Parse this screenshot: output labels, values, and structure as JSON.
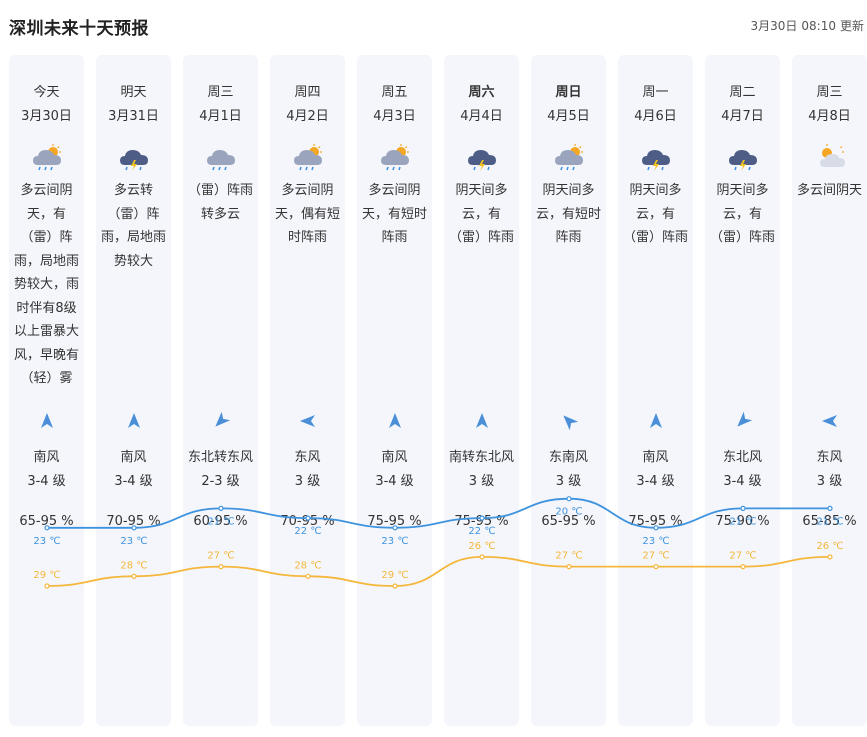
{
  "header": {
    "title": "深圳未来十天预报",
    "update_date": "3月30日",
    "update_time": "08:10",
    "update_suffix": "更新"
  },
  "colors": {
    "high_line": "#f5b73b",
    "low_line": "#3e93df",
    "column_bg": "#f4f6fb",
    "wind_arrow": "#4a8fd8"
  },
  "days": [
    {
      "weekday": "今天",
      "bold": false,
      "date": "3月30日",
      "icon": "cloud-sun-rain-icon",
      "desc": "多云间阴天，有（雷）阵雨，局地雨势较大，雨时伴有8级以上雷暴大风，早晚有（轻）雾",
      "wind_arrow": "arrow-up-icon",
      "wind_dir": "南风",
      "wind_level": "3-4 级",
      "humidity": "65-95 %",
      "high": "29 ℃",
      "low": "23 ℃"
    },
    {
      "weekday": "明天",
      "bold": false,
      "date": "3月31日",
      "icon": "thunderstorm-icon",
      "desc": "多云转（雷）阵雨，局地雨势较大",
      "wind_arrow": "arrow-up-icon",
      "wind_dir": "南风",
      "wind_level": "3-4 级",
      "humidity": "70-95 %",
      "high": "28 ℃",
      "low": "23 ℃"
    },
    {
      "weekday": "周三",
      "bold": false,
      "date": "4月1日",
      "icon": "cloud-rain-icon",
      "desc": "（雷）阵雨转多云",
      "wind_arrow": "arrow-down-left-icon",
      "wind_dir": "东北转东风",
      "wind_level": "2-3 级",
      "humidity": "60-95 %",
      "high": "27 ℃",
      "low": "21 ℃"
    },
    {
      "weekday": "周四",
      "bold": false,
      "date": "4月2日",
      "icon": "cloud-sun-rain-icon",
      "desc": "多云间阴天，偶有短时阵雨",
      "wind_arrow": "arrow-left-icon",
      "wind_dir": "东风",
      "wind_level": "3 级",
      "humidity": "70-95 %",
      "high": "28 ℃",
      "low": "22 ℃"
    },
    {
      "weekday": "周五",
      "bold": false,
      "date": "4月3日",
      "icon": "cloud-sun-rain-icon",
      "desc": "多云间阴天，有短时阵雨",
      "wind_arrow": "arrow-up-icon",
      "wind_dir": "南风",
      "wind_level": "3-4 级",
      "humidity": "75-95 %",
      "high": "29 ℃",
      "low": "23 ℃"
    },
    {
      "weekday": "周六",
      "bold": true,
      "date": "4月4日",
      "icon": "thunderstorm-icon",
      "desc": "阴天间多云，有（雷）阵雨",
      "wind_arrow": "arrow-up-icon",
      "wind_dir": "南转东北风",
      "wind_level": "3 级",
      "humidity": "75-95 %",
      "high": "26 ℃",
      "low": "22 ℃"
    },
    {
      "weekday": "周日",
      "bold": true,
      "date": "4月5日",
      "icon": "cloud-sun-rain-icon",
      "desc": "阴天间多云，有短时阵雨",
      "wind_arrow": "arrow-up-left-icon",
      "wind_dir": "东南风",
      "wind_level": "3 级",
      "humidity": "65-95 %",
      "high": "27 ℃",
      "low": "20 ℃"
    },
    {
      "weekday": "周一",
      "bold": false,
      "date": "4月6日",
      "icon": "thunderstorm-icon",
      "desc": "阴天间多云，有（雷）阵雨",
      "wind_arrow": "arrow-up-icon",
      "wind_dir": "南风",
      "wind_level": "3-4 级",
      "humidity": "75-95 %",
      "high": "27 ℃",
      "low": "23 ℃"
    },
    {
      "weekday": "周二",
      "bold": false,
      "date": "4月7日",
      "icon": "thunderstorm-icon",
      "desc": "阴天间多云，有（雷）阵雨",
      "wind_arrow": "arrow-down-left-icon",
      "wind_dir": "东北风",
      "wind_level": "3-4 级",
      "humidity": "75-90 %",
      "high": "27 ℃",
      "low": "21 ℃"
    },
    {
      "weekday": "周三",
      "bold": false,
      "date": "4月8日",
      "icon": "partly-cloudy-icon",
      "desc": "多云间阴天",
      "wind_arrow": "arrow-left-icon",
      "wind_dir": "东风",
      "wind_level": "3 级",
      "humidity": "65-85 %",
      "high": "26 ℃",
      "low": "21 ℃"
    }
  ],
  "chart_data": {
    "type": "line",
    "categories": [
      "3月30日",
      "3月31日",
      "4月1日",
      "4月2日",
      "4月3日",
      "4月4日",
      "4月5日",
      "4月6日",
      "4月7日",
      "4月8日"
    ],
    "series": [
      {
        "values": [
          29,
          28,
          27,
          28,
          29,
          26,
          27,
          27,
          27,
          26
        ],
        "color": "#f5b73b"
      },
      {
        "values": [
          23,
          23,
          21,
          22,
          23,
          22,
          20,
          23,
          21,
          21
        ],
        "color": "#3e93df"
      }
    ],
    "unit": "℃"
  }
}
